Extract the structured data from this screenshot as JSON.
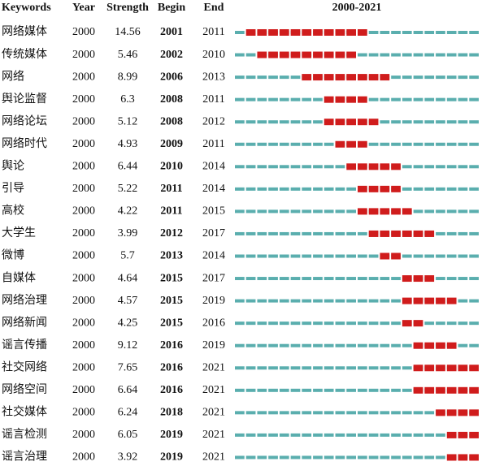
{
  "table": {
    "headers": [
      "Keywords",
      "Year",
      "Strength",
      "Begin",
      "End",
      "2000-2021"
    ],
    "rows": [
      [
        "网络媒体",
        2000,
        14.56,
        2001,
        2011
      ],
      [
        "传统媒体",
        2000,
        5.46,
        2002,
        2010
      ],
      [
        "网络",
        2000,
        8.99,
        2006,
        2013
      ],
      [
        "舆论监督",
        2000,
        6.3,
        2008,
        2011
      ],
      [
        "网络论坛",
        2000,
        5.12,
        2008,
        2012
      ],
      [
        "网络时代",
        2000,
        4.93,
        2009,
        2011
      ],
      [
        "舆论",
        2000,
        6.44,
        2010,
        2014
      ],
      [
        "引导",
        2000,
        5.22,
        2011,
        2014
      ],
      [
        "高校",
        2000,
        4.22,
        2011,
        2015
      ],
      [
        "大学生",
        2000,
        3.99,
        2012,
        2017
      ],
      [
        "微博",
        2000,
        5.7,
        2013,
        2014
      ],
      [
        "自媒体",
        2000,
        4.64,
        2015,
        2017
      ],
      [
        "网络治理",
        2000,
        4.57,
        2015,
        2019
      ],
      [
        "网络新闻",
        2000,
        4.25,
        2015,
        2016
      ],
      [
        "谣言传播",
        2000,
        9.12,
        2016,
        2019
      ],
      [
        "社交网络",
        2000,
        7.65,
        2016,
        2021
      ],
      [
        "网络空间",
        2000,
        6.64,
        2016,
        2021
      ],
      [
        "社交媒体",
        2000,
        6.24,
        2018,
        2021
      ],
      [
        "谣言检测",
        2000,
        6.05,
        2019,
        2021
      ],
      [
        "谣言治理",
        2000,
        3.92,
        2019,
        2021
      ]
    ],
    "base_color": "#5aaeae",
    "burst_color": "#d01c1c"
  }
}
